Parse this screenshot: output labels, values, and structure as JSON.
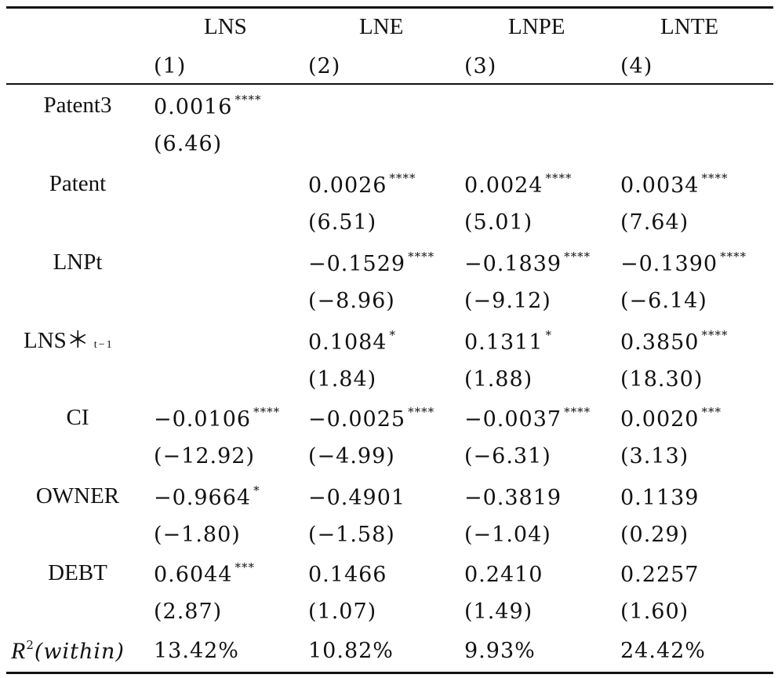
{
  "columns": [
    {
      "name": "LNS",
      "num": "(1)"
    },
    {
      "name": "LNE",
      "num": "(2)"
    },
    {
      "name": "LNPE",
      "num": "(3)"
    },
    {
      "name": "LNTE",
      "num": "(4)"
    }
  ],
  "rows": [
    {
      "label": "Patent3",
      "coef": [
        {
          "v": "0.0016",
          "s": "****"
        },
        {
          "v": "",
          "s": ""
        },
        {
          "v": "",
          "s": ""
        },
        {
          "v": "",
          "s": ""
        }
      ],
      "t": [
        "(6.46)",
        "",
        "",
        ""
      ]
    },
    {
      "label": "Patent",
      "coef": [
        {
          "v": "",
          "s": ""
        },
        {
          "v": "0.0026",
          "s": "****"
        },
        {
          "v": "0.0024",
          "s": "****"
        },
        {
          "v": "0.0034",
          "s": "****"
        }
      ],
      "t": [
        "",
        "(6.51)",
        "(5.01)",
        "(7.64)"
      ]
    },
    {
      "label": "LNPt",
      "coef": [
        {
          "v": "",
          "s": ""
        },
        {
          "v": "−0.1529",
          "s": "****"
        },
        {
          "v": "−0.1839",
          "s": "****"
        },
        {
          "v": "−0.1390",
          "s": "****"
        }
      ],
      "t": [
        "",
        "(−8.96)",
        "(−9.12)",
        "(−6.14)"
      ]
    },
    {
      "label": "LNS＊",
      "label_sub": "t−1",
      "coef": [
        {
          "v": "",
          "s": ""
        },
        {
          "v": "0.1084",
          "s": "*"
        },
        {
          "v": "0.1311",
          "s": "*"
        },
        {
          "v": "0.3850",
          "s": "****"
        }
      ],
      "t": [
        "",
        "(1.84)",
        "(1.88)",
        "(18.30)"
      ]
    },
    {
      "label": "CI",
      "coef": [
        {
          "v": "−0.0106",
          "s": "****"
        },
        {
          "v": "−0.0025",
          "s": "****"
        },
        {
          "v": "−0.0037",
          "s": "****"
        },
        {
          "v": "0.0020",
          "s": "***"
        }
      ],
      "t": [
        "(−12.92)",
        "(−4.99)",
        "(−6.31)",
        "(3.13)"
      ]
    },
    {
      "label": "OWNER",
      "coef": [
        {
          "v": "−0.9664",
          "s": "*"
        },
        {
          "v": "−0.4901",
          "s": ""
        },
        {
          "v": "−0.3819",
          "s": ""
        },
        {
          "v": "0.1139",
          "s": ""
        }
      ],
      "t": [
        "(−1.80)",
        "(−1.58)",
        "(−1.04)",
        "(0.29)"
      ]
    },
    {
      "label": "DEBT",
      "coef": [
        {
          "v": "0.6044",
          "s": "***"
        },
        {
          "v": "0.1466",
          "s": ""
        },
        {
          "v": "0.2410",
          "s": ""
        },
        {
          "v": "0.2257",
          "s": ""
        }
      ],
      "t": [
        "(2.87)",
        "(1.07)",
        "(1.49)",
        "(1.60)"
      ]
    }
  ],
  "r2": {
    "label_R": "R",
    "label_sup": "2",
    "label_rest": "(within)",
    "values": [
      "13.42%",
      "10.82%",
      "9.93%",
      "24.42%"
    ]
  }
}
